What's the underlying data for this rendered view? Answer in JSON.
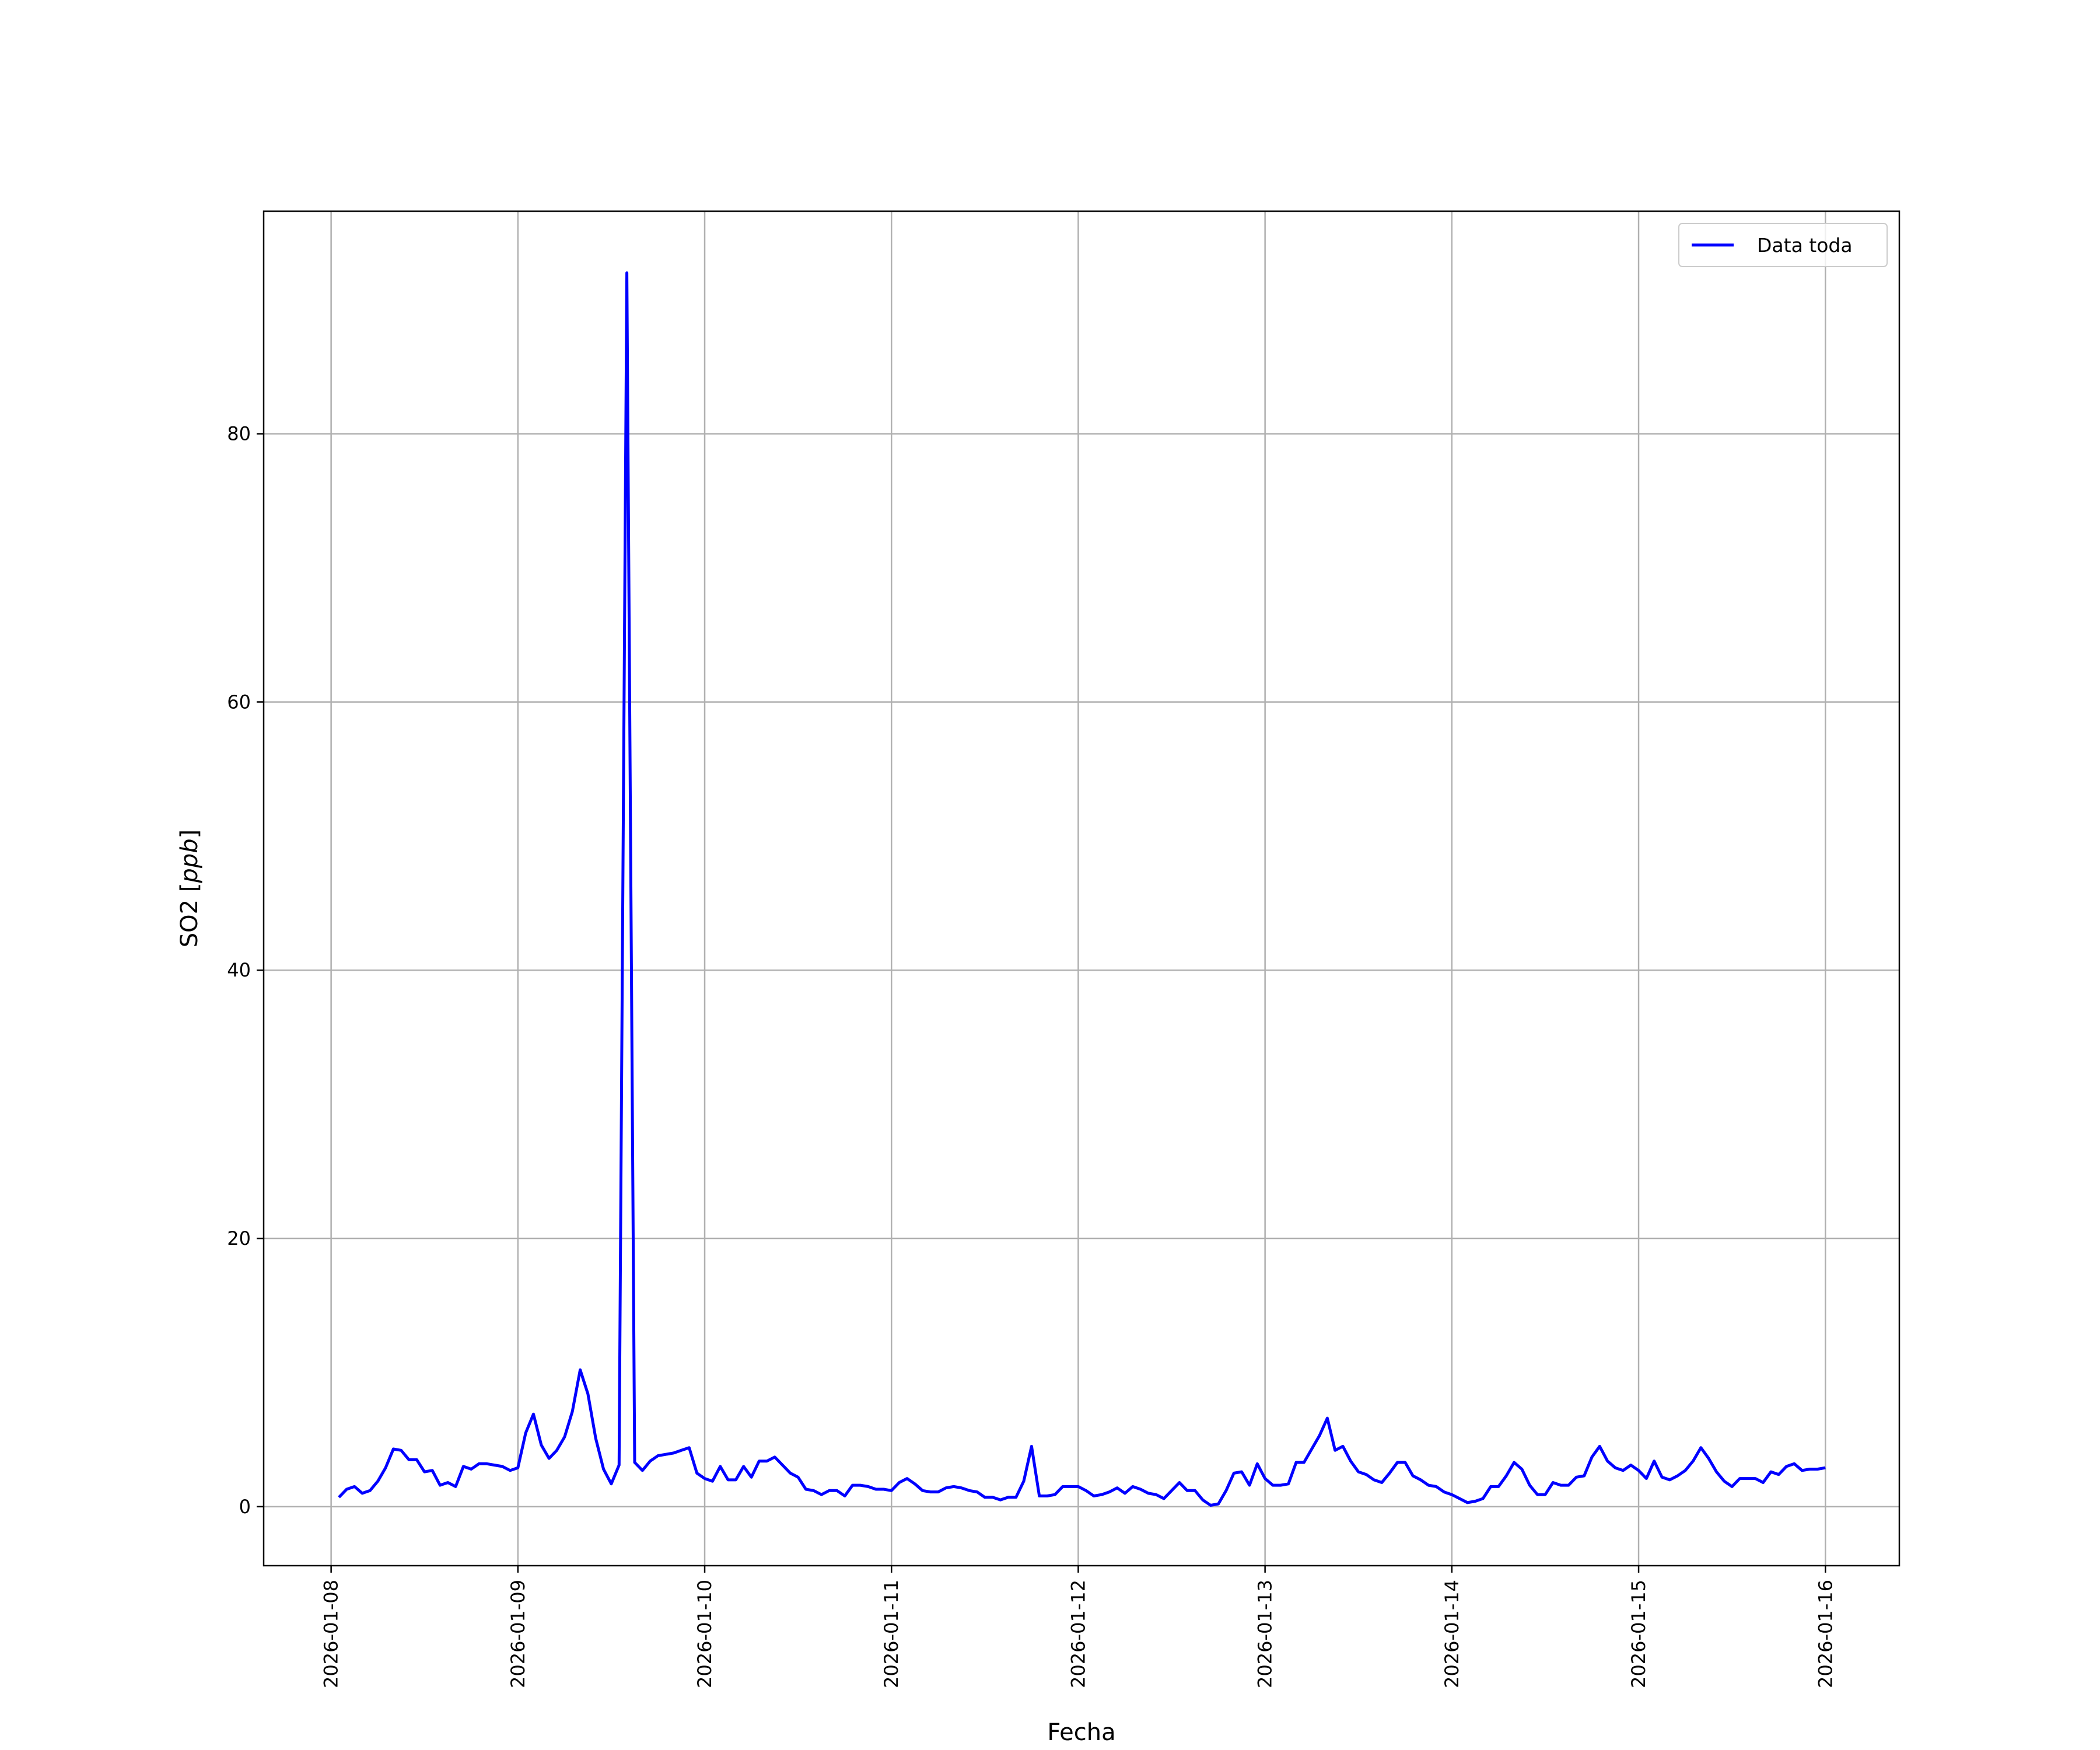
{
  "chart_data": {
    "type": "line",
    "title": "",
    "xlabel": "Fecha",
    "ylabel": "SO2 [ppb]",
    "ylabel_plain": "SO2 [",
    "ylabel_unit": "ppb",
    "ylabel_close": "]",
    "xlim": [
      "2026-01-07 15:20",
      "2026-01-16 09:30"
    ],
    "ylim": [
      -4.4,
      96.6
    ],
    "grid": true,
    "legend_position": "top-right",
    "x_ticks": [
      "2026-01-08",
      "2026-01-09",
      "2026-01-10",
      "2026-01-11",
      "2026-01-12",
      "2026-01-13",
      "2026-01-14",
      "2026-01-15",
      "2026-01-16"
    ],
    "y_ticks": [
      0,
      20,
      40,
      60,
      80
    ],
    "series": [
      {
        "name": "Data toda",
        "color": "#0000ff",
        "points": [
          [
            "2026-01-08 01:00",
            0.7
          ],
          [
            "2026-01-08 02:00",
            1.3
          ],
          [
            "2026-01-08 03:00",
            1.5
          ],
          [
            "2026-01-08 04:00",
            1.0
          ],
          [
            "2026-01-08 05:00",
            1.2
          ],
          [
            "2026-01-08 06:00",
            1.9
          ],
          [
            "2026-01-08 07:00",
            2.9
          ],
          [
            "2026-01-08 08:00",
            4.3
          ],
          [
            "2026-01-08 09:00",
            4.2
          ],
          [
            "2026-01-08 10:00",
            3.5
          ],
          [
            "2026-01-08 11:00",
            3.5
          ],
          [
            "2026-01-08 12:00",
            2.6
          ],
          [
            "2026-01-08 13:00",
            2.7
          ],
          [
            "2026-01-08 14:00",
            1.6
          ],
          [
            "2026-01-08 15:00",
            1.8
          ],
          [
            "2026-01-08 16:00",
            1.5
          ],
          [
            "2026-01-08 17:00",
            3.0
          ],
          [
            "2026-01-08 18:00",
            2.8
          ],
          [
            "2026-01-08 19:00",
            3.2
          ],
          [
            "2026-01-08 20:00",
            3.2
          ],
          [
            "2026-01-08 21:00",
            3.1
          ],
          [
            "2026-01-08 22:00",
            3.0
          ],
          [
            "2026-01-08 23:00",
            2.7
          ],
          [
            "2026-01-09 00:00",
            2.9
          ],
          [
            "2026-01-09 01:00",
            5.5
          ],
          [
            "2026-01-09 02:00",
            6.9
          ],
          [
            "2026-01-09 03:00",
            4.6
          ],
          [
            "2026-01-09 04:00",
            3.6
          ],
          [
            "2026-01-09 05:00",
            4.2
          ],
          [
            "2026-01-09 06:00",
            5.2
          ],
          [
            "2026-01-09 07:00",
            7.1
          ],
          [
            "2026-01-09 08:00",
            10.2
          ],
          [
            "2026-01-09 09:00",
            8.4
          ],
          [
            "2026-01-09 10:00",
            5.1
          ],
          [
            "2026-01-09 11:00",
            2.8
          ],
          [
            "2026-01-09 12:00",
            1.7
          ],
          [
            "2026-01-09 13:00",
            3.1
          ],
          [
            "2026-01-09 14:00",
            92.0
          ],
          [
            "2026-01-09 15:00",
            3.3
          ],
          [
            "2026-01-09 16:00",
            2.7
          ],
          [
            "2026-01-09 17:00",
            3.4
          ],
          [
            "2026-01-09 18:00",
            3.8
          ],
          [
            "2026-01-09 19:00",
            3.9
          ],
          [
            "2026-01-09 20:00",
            4.0
          ],
          [
            "2026-01-09 21:00",
            4.2
          ],
          [
            "2026-01-09 22:00",
            4.4
          ],
          [
            "2026-01-09 23:00",
            2.5
          ],
          [
            "2026-01-10 00:00",
            2.1
          ],
          [
            "2026-01-10 01:00",
            1.9
          ],
          [
            "2026-01-10 02:00",
            3.0
          ],
          [
            "2026-01-10 03:00",
            2.0
          ],
          [
            "2026-01-10 04:00",
            2.0
          ],
          [
            "2026-01-10 05:00",
            3.0
          ],
          [
            "2026-01-10 06:00",
            2.2
          ],
          [
            "2026-01-10 07:00",
            3.4
          ],
          [
            "2026-01-10 08:00",
            3.4
          ],
          [
            "2026-01-10 09:00",
            3.7
          ],
          [
            "2026-01-10 10:00",
            3.1
          ],
          [
            "2026-01-10 11:00",
            2.5
          ],
          [
            "2026-01-10 12:00",
            2.2
          ],
          [
            "2026-01-10 13:00",
            1.3
          ],
          [
            "2026-01-10 14:00",
            1.2
          ],
          [
            "2026-01-10 15:00",
            0.9
          ],
          [
            "2026-01-10 16:00",
            1.2
          ],
          [
            "2026-01-10 17:00",
            1.2
          ],
          [
            "2026-01-10 18:00",
            0.8
          ],
          [
            "2026-01-10 19:00",
            1.6
          ],
          [
            "2026-01-10 20:00",
            1.6
          ],
          [
            "2026-01-10 21:00",
            1.5
          ],
          [
            "2026-01-10 22:00",
            1.3
          ],
          [
            "2026-01-10 23:00",
            1.3
          ],
          [
            "2026-01-11 00:00",
            1.2
          ],
          [
            "2026-01-11 01:00",
            1.8
          ],
          [
            "2026-01-11 02:00",
            2.1
          ],
          [
            "2026-01-11 03:00",
            1.7
          ],
          [
            "2026-01-11 04:00",
            1.2
          ],
          [
            "2026-01-11 05:00",
            1.1
          ],
          [
            "2026-01-11 06:00",
            1.1
          ],
          [
            "2026-01-11 07:00",
            1.4
          ],
          [
            "2026-01-11 08:00",
            1.5
          ],
          [
            "2026-01-11 09:00",
            1.4
          ],
          [
            "2026-01-11 10:00",
            1.2
          ],
          [
            "2026-01-11 11:00",
            1.1
          ],
          [
            "2026-01-11 12:00",
            0.7
          ],
          [
            "2026-01-11 13:00",
            0.7
          ],
          [
            "2026-01-11 14:00",
            0.5
          ],
          [
            "2026-01-11 15:00",
            0.7
          ],
          [
            "2026-01-11 16:00",
            0.7
          ],
          [
            "2026-01-11 17:00",
            1.9
          ],
          [
            "2026-01-11 18:00",
            4.5
          ],
          [
            "2026-01-11 19:00",
            0.8
          ],
          [
            "2026-01-11 20:00",
            0.8
          ],
          [
            "2026-01-11 21:00",
            0.9
          ],
          [
            "2026-01-11 22:00",
            1.5
          ],
          [
            "2026-01-11 23:00",
            1.5
          ],
          [
            "2026-01-12 00:00",
            1.5
          ],
          [
            "2026-01-12 01:00",
            1.2
          ],
          [
            "2026-01-12 02:00",
            0.8
          ],
          [
            "2026-01-12 03:00",
            0.9
          ],
          [
            "2026-01-12 04:00",
            1.1
          ],
          [
            "2026-01-12 05:00",
            1.4
          ],
          [
            "2026-01-12 06:00",
            1.0
          ],
          [
            "2026-01-12 07:00",
            1.5
          ],
          [
            "2026-01-12 08:00",
            1.3
          ],
          [
            "2026-01-12 09:00",
            1.0
          ],
          [
            "2026-01-12 10:00",
            0.9
          ],
          [
            "2026-01-12 11:00",
            0.6
          ],
          [
            "2026-01-12 12:00",
            1.2
          ],
          [
            "2026-01-12 13:00",
            1.8
          ],
          [
            "2026-01-12 14:00",
            1.2
          ],
          [
            "2026-01-12 15:00",
            1.2
          ],
          [
            "2026-01-12 16:00",
            0.5
          ],
          [
            "2026-01-12 17:00",
            0.1
          ],
          [
            "2026-01-12 18:00",
            0.2
          ],
          [
            "2026-01-12 19:00",
            1.2
          ],
          [
            "2026-01-12 20:00",
            2.5
          ],
          [
            "2026-01-12 21:00",
            2.6
          ],
          [
            "2026-01-12 22:00",
            1.6
          ],
          [
            "2026-01-12 23:00",
            3.2
          ],
          [
            "2026-01-13 00:00",
            2.1
          ],
          [
            "2026-01-13 01:00",
            1.6
          ],
          [
            "2026-01-13 02:00",
            1.6
          ],
          [
            "2026-01-13 03:00",
            1.7
          ],
          [
            "2026-01-13 04:00",
            3.3
          ],
          [
            "2026-01-13 05:00",
            3.3
          ],
          [
            "2026-01-13 06:00",
            4.3
          ],
          [
            "2026-01-13 07:00",
            5.3
          ],
          [
            "2026-01-13 08:00",
            6.6
          ],
          [
            "2026-01-13 09:00",
            4.2
          ],
          [
            "2026-01-13 10:00",
            4.5
          ],
          [
            "2026-01-13 11:00",
            3.4
          ],
          [
            "2026-01-13 12:00",
            2.6
          ],
          [
            "2026-01-13 13:00",
            2.4
          ],
          [
            "2026-01-13 14:00",
            2.0
          ],
          [
            "2026-01-13 15:00",
            1.8
          ],
          [
            "2026-01-13 16:00",
            2.5
          ],
          [
            "2026-01-13 17:00",
            3.3
          ],
          [
            "2026-01-13 18:00",
            3.3
          ],
          [
            "2026-01-13 19:00",
            2.3
          ],
          [
            "2026-01-13 20:00",
            2.0
          ],
          [
            "2026-01-13 21:00",
            1.6
          ],
          [
            "2026-01-13 22:00",
            1.5
          ],
          [
            "2026-01-13 23:00",
            1.1
          ],
          [
            "2026-01-14 00:00",
            0.9
          ],
          [
            "2026-01-14 01:00",
            0.6
          ],
          [
            "2026-01-14 02:00",
            0.3
          ],
          [
            "2026-01-14 03:00",
            0.4
          ],
          [
            "2026-01-14 04:00",
            0.6
          ],
          [
            "2026-01-14 05:00",
            1.5
          ],
          [
            "2026-01-14 06:00",
            1.5
          ],
          [
            "2026-01-14 07:00",
            2.3
          ],
          [
            "2026-01-14 08:00",
            3.3
          ],
          [
            "2026-01-14 09:00",
            2.8
          ],
          [
            "2026-01-14 10:00",
            1.6
          ],
          [
            "2026-01-14 11:00",
            0.9
          ],
          [
            "2026-01-14 12:00",
            0.9
          ],
          [
            "2026-01-14 13:00",
            1.8
          ],
          [
            "2026-01-14 14:00",
            1.6
          ],
          [
            "2026-01-14 15:00",
            1.6
          ],
          [
            "2026-01-14 16:00",
            2.2
          ],
          [
            "2026-01-14 17:00",
            2.3
          ],
          [
            "2026-01-14 18:00",
            3.7
          ],
          [
            "2026-01-14 19:00",
            4.5
          ],
          [
            "2026-01-14 20:00",
            3.4
          ],
          [
            "2026-01-14 21:00",
            2.9
          ],
          [
            "2026-01-14 22:00",
            2.7
          ],
          [
            "2026-01-14 23:00",
            3.1
          ],
          [
            "2026-01-15 00:00",
            2.7
          ],
          [
            "2026-01-15 01:00",
            2.1
          ],
          [
            "2026-01-15 02:00",
            3.4
          ],
          [
            "2026-01-15 03:00",
            2.2
          ],
          [
            "2026-01-15 04:00",
            2.0
          ],
          [
            "2026-01-15 05:00",
            2.3
          ],
          [
            "2026-01-15 06:00",
            2.7
          ],
          [
            "2026-01-15 07:00",
            3.4
          ],
          [
            "2026-01-15 08:00",
            4.4
          ],
          [
            "2026-01-15 09:00",
            3.6
          ],
          [
            "2026-01-15 10:00",
            2.6
          ],
          [
            "2026-01-15 11:00",
            1.9
          ],
          [
            "2026-01-15 12:00",
            1.5
          ],
          [
            "2026-01-15 13:00",
            2.1
          ],
          [
            "2026-01-15 14:00",
            2.1
          ],
          [
            "2026-01-15 15:00",
            2.1
          ],
          [
            "2026-01-15 16:00",
            1.8
          ],
          [
            "2026-01-15 17:00",
            2.6
          ],
          [
            "2026-01-15 18:00",
            2.4
          ],
          [
            "2026-01-15 19:00",
            3.0
          ],
          [
            "2026-01-15 20:00",
            3.2
          ],
          [
            "2026-01-15 21:00",
            2.7
          ],
          [
            "2026-01-15 22:00",
            2.8
          ],
          [
            "2026-01-15 23:00",
            2.8
          ],
          [
            "2026-01-16 00:00",
            2.9
          ]
        ]
      }
    ]
  }
}
